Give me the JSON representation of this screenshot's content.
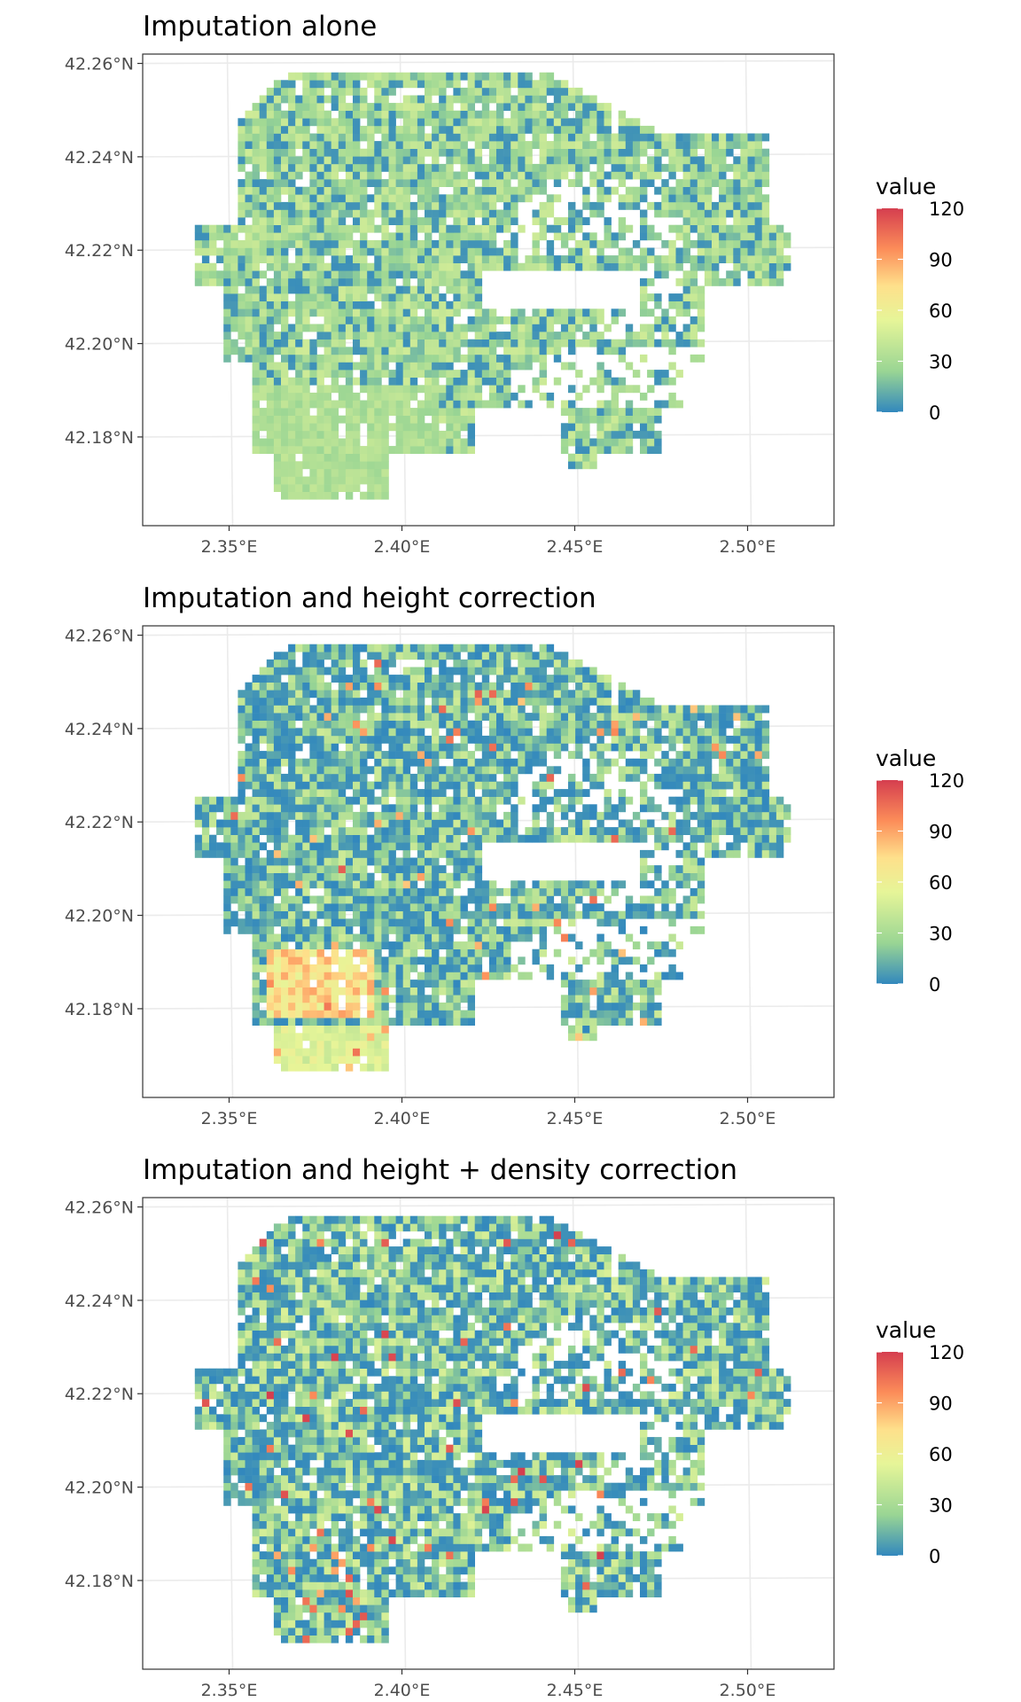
{
  "chart_data": [
    {
      "type": "heatmap",
      "title": "Imputation alone",
      "x_ticks": [
        "2.35°E",
        "2.40°E",
        "2.45°E",
        "2.50°E"
      ],
      "y_ticks": [
        "42.26°N",
        "42.24°N",
        "42.22°N",
        "42.20°N",
        "42.18°N"
      ],
      "x_tick_values": [
        2.35,
        2.4,
        2.45,
        2.5
      ],
      "y_tick_values": [
        42.26,
        42.24,
        42.22,
        42.2,
        42.18
      ],
      "xlim": [
        2.325,
        2.525
      ],
      "ylim": [
        42.161,
        42.262
      ],
      "legend": {
        "title": "value",
        "ticks": [
          "120",
          "90",
          "60",
          "30",
          "0"
        ],
        "range": [
          0,
          120
        ]
      },
      "correction": "none"
    },
    {
      "type": "heatmap",
      "title": "Imputation and height correction",
      "x_ticks": [
        "2.35°E",
        "2.40°E",
        "2.45°E",
        "2.50°E"
      ],
      "y_ticks": [
        "42.26°N",
        "42.24°N",
        "42.22°N",
        "42.20°N",
        "42.18°N"
      ],
      "x_tick_values": [
        2.35,
        2.4,
        2.45,
        2.5
      ],
      "y_tick_values": [
        42.26,
        42.24,
        42.22,
        42.2,
        42.18
      ],
      "xlim": [
        2.325,
        2.525
      ],
      "ylim": [
        42.161,
        42.262
      ],
      "legend": {
        "title": "value",
        "ticks": [
          "120",
          "90",
          "60",
          "30",
          "0"
        ],
        "range": [
          0,
          120
        ]
      },
      "correction": "height"
    },
    {
      "type": "heatmap",
      "title": "Imputation and height + density correction",
      "x_ticks": [
        "2.35°E",
        "2.40°E",
        "2.45°E",
        "2.50°E"
      ],
      "y_ticks": [
        "42.26°N",
        "42.24°N",
        "42.22°N",
        "42.20°N",
        "42.18°N"
      ],
      "x_tick_values": [
        2.35,
        2.4,
        2.45,
        2.5
      ],
      "y_tick_values": [
        42.26,
        42.24,
        42.22,
        42.2,
        42.18
      ],
      "xlim": [
        2.325,
        2.525
      ],
      "ylim": [
        42.161,
        42.262
      ],
      "legend": {
        "title": "value",
        "ticks": [
          "120",
          "90",
          "60",
          "30",
          "0"
        ],
        "range": [
          0,
          120
        ]
      },
      "correction": "height+density"
    }
  ],
  "colorscale": {
    "name": "Spectral",
    "stops": [
      "#3288bd",
      "#99d594",
      "#e6f598",
      "#fee08b",
      "#fc8d59",
      "#d53e4f"
    ]
  }
}
